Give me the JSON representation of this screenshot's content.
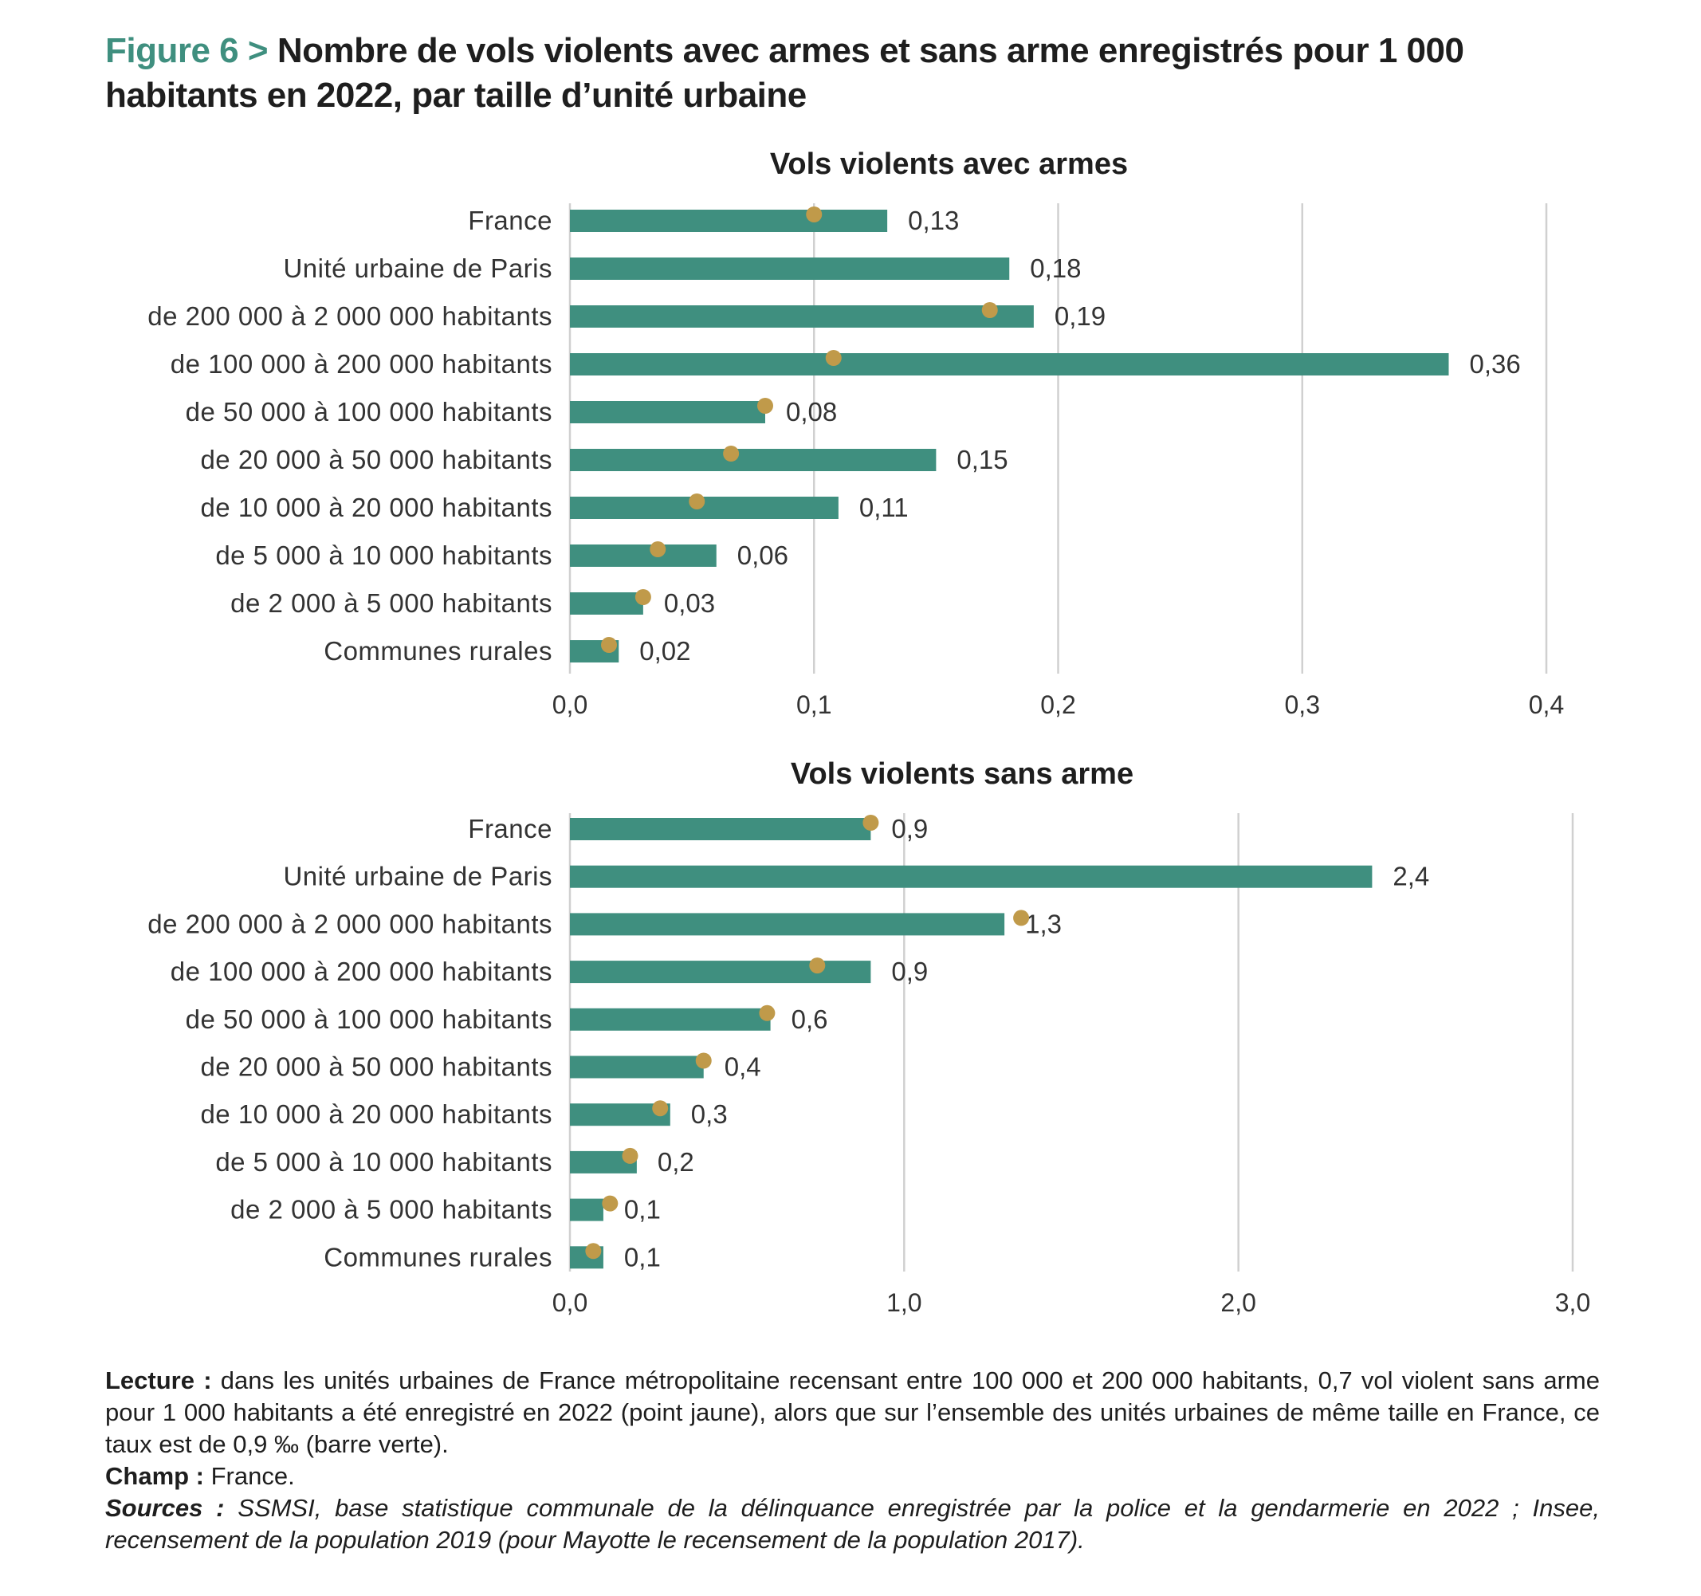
{
  "figure": {
    "number": "Figure 6 >",
    "title": "Nombre de vols violents avec armes et sans arme enregistrés pour 1 000 habitants en 2022, par taille d’unité urbaine"
  },
  "colors": {
    "bar": "#3f8f7f",
    "dot": "#c09a4a",
    "grid": "#d0d0d0",
    "title_accent": "#3f8f7f"
  },
  "chart_data": [
    {
      "type": "bar",
      "orientation": "horizontal",
      "title": "Vols violents avec armes",
      "categories": [
        "France",
        "Unité urbaine de Paris",
        "de 200 000 à 2 000 000 habitants",
        "de 100 000 à 200 000 habitants",
        "de 50 000 à 100 000 habitants",
        "de 20 000 à 50 000 habitants",
        "de 10 000 à 20 000 habitants",
        "de 5 000 à 10 000 habitants",
        "de 2 000 à 5 000 habitants",
        "Communes rurales"
      ],
      "series": [
        {
          "values": [
            0.13,
            0.18,
            0.19,
            0.36,
            0.08,
            0.15,
            0.11,
            0.06,
            0.03,
            0.02
          ]
        },
        {
          "values": [
            0.1,
            null,
            0.172,
            0.108,
            0.08,
            0.066,
            0.052,
            0.036,
            0.03,
            0.016
          ]
        }
      ],
      "value_labels": [
        "0,13",
        "0,18",
        "0,19",
        "0,36",
        "0,08",
        "0,15",
        "0,11",
        "0,06",
        "0,03",
        "0,02"
      ],
      "xlim": [
        0,
        0.4
      ],
      "xticks": [
        0,
        0.1,
        0.2,
        0.3,
        0.4
      ],
      "xtick_labels": [
        "0,0",
        "0,1",
        "0,2",
        "0,3",
        "0,4"
      ],
      "grid": true
    },
    {
      "type": "bar",
      "orientation": "horizontal",
      "title": "Vols violents sans arme",
      "categories": [
        "France",
        "Unité urbaine de Paris",
        "de 200 000 à 2 000 000 habitants",
        "de 100 000 à 200 000 habitants",
        "de 50 000 à 100 000 habitants",
        "de 20 000 à 50 000 habitants",
        "de 10 000 à 20 000 habitants",
        "de 5 000 à 10 000 habitants",
        "de 2 000 à 5 000 habitants",
        "Communes rurales"
      ],
      "series": [
        {
          "values": [
            0.9,
            2.4,
            1.3,
            0.9,
            0.6,
            0.4,
            0.3,
            0.2,
            0.1,
            0.1
          ]
        },
        {
          "values": [
            0.9,
            null,
            1.35,
            0.74,
            0.59,
            0.4,
            0.27,
            0.18,
            0.12,
            0.07
          ]
        }
      ],
      "value_labels": [
        "0,9",
        "2,4",
        "1,3",
        "0,9",
        "0,6",
        "0,4",
        "0,3",
        "0,2",
        "0,1",
        "0,1"
      ],
      "xlim": [
        0,
        3.0
      ],
      "xticks": [
        0,
        1.0,
        2.0,
        3.0
      ],
      "xtick_labels": [
        "0,0",
        "1,0",
        "2,0",
        "3,0"
      ],
      "grid": true
    }
  ],
  "notes": {
    "lecture_label": "Lecture :",
    "lecture_text": " dans les unités urbaines de France métropolitaine recensant entre 100 000 et 200 000 habitants, 0,7 vol violent sans arme pour 1 000 habitants a été enregistré en 2022 (point jaune), alors que sur l’ensemble des unités urbaines de même taille en France, ce taux est de 0,9 ‰ (barre verte).",
    "champ_label": "Champ :",
    "champ_text": " France.",
    "sources_label": "Sources :",
    "sources_text": " SSMSI, base statistique communale de la délinquance enregistrée par la police et la gendarmerie en 2022 ; Insee, recensement de la population 2019 (pour Mayotte le recensement de la population 2017)."
  }
}
